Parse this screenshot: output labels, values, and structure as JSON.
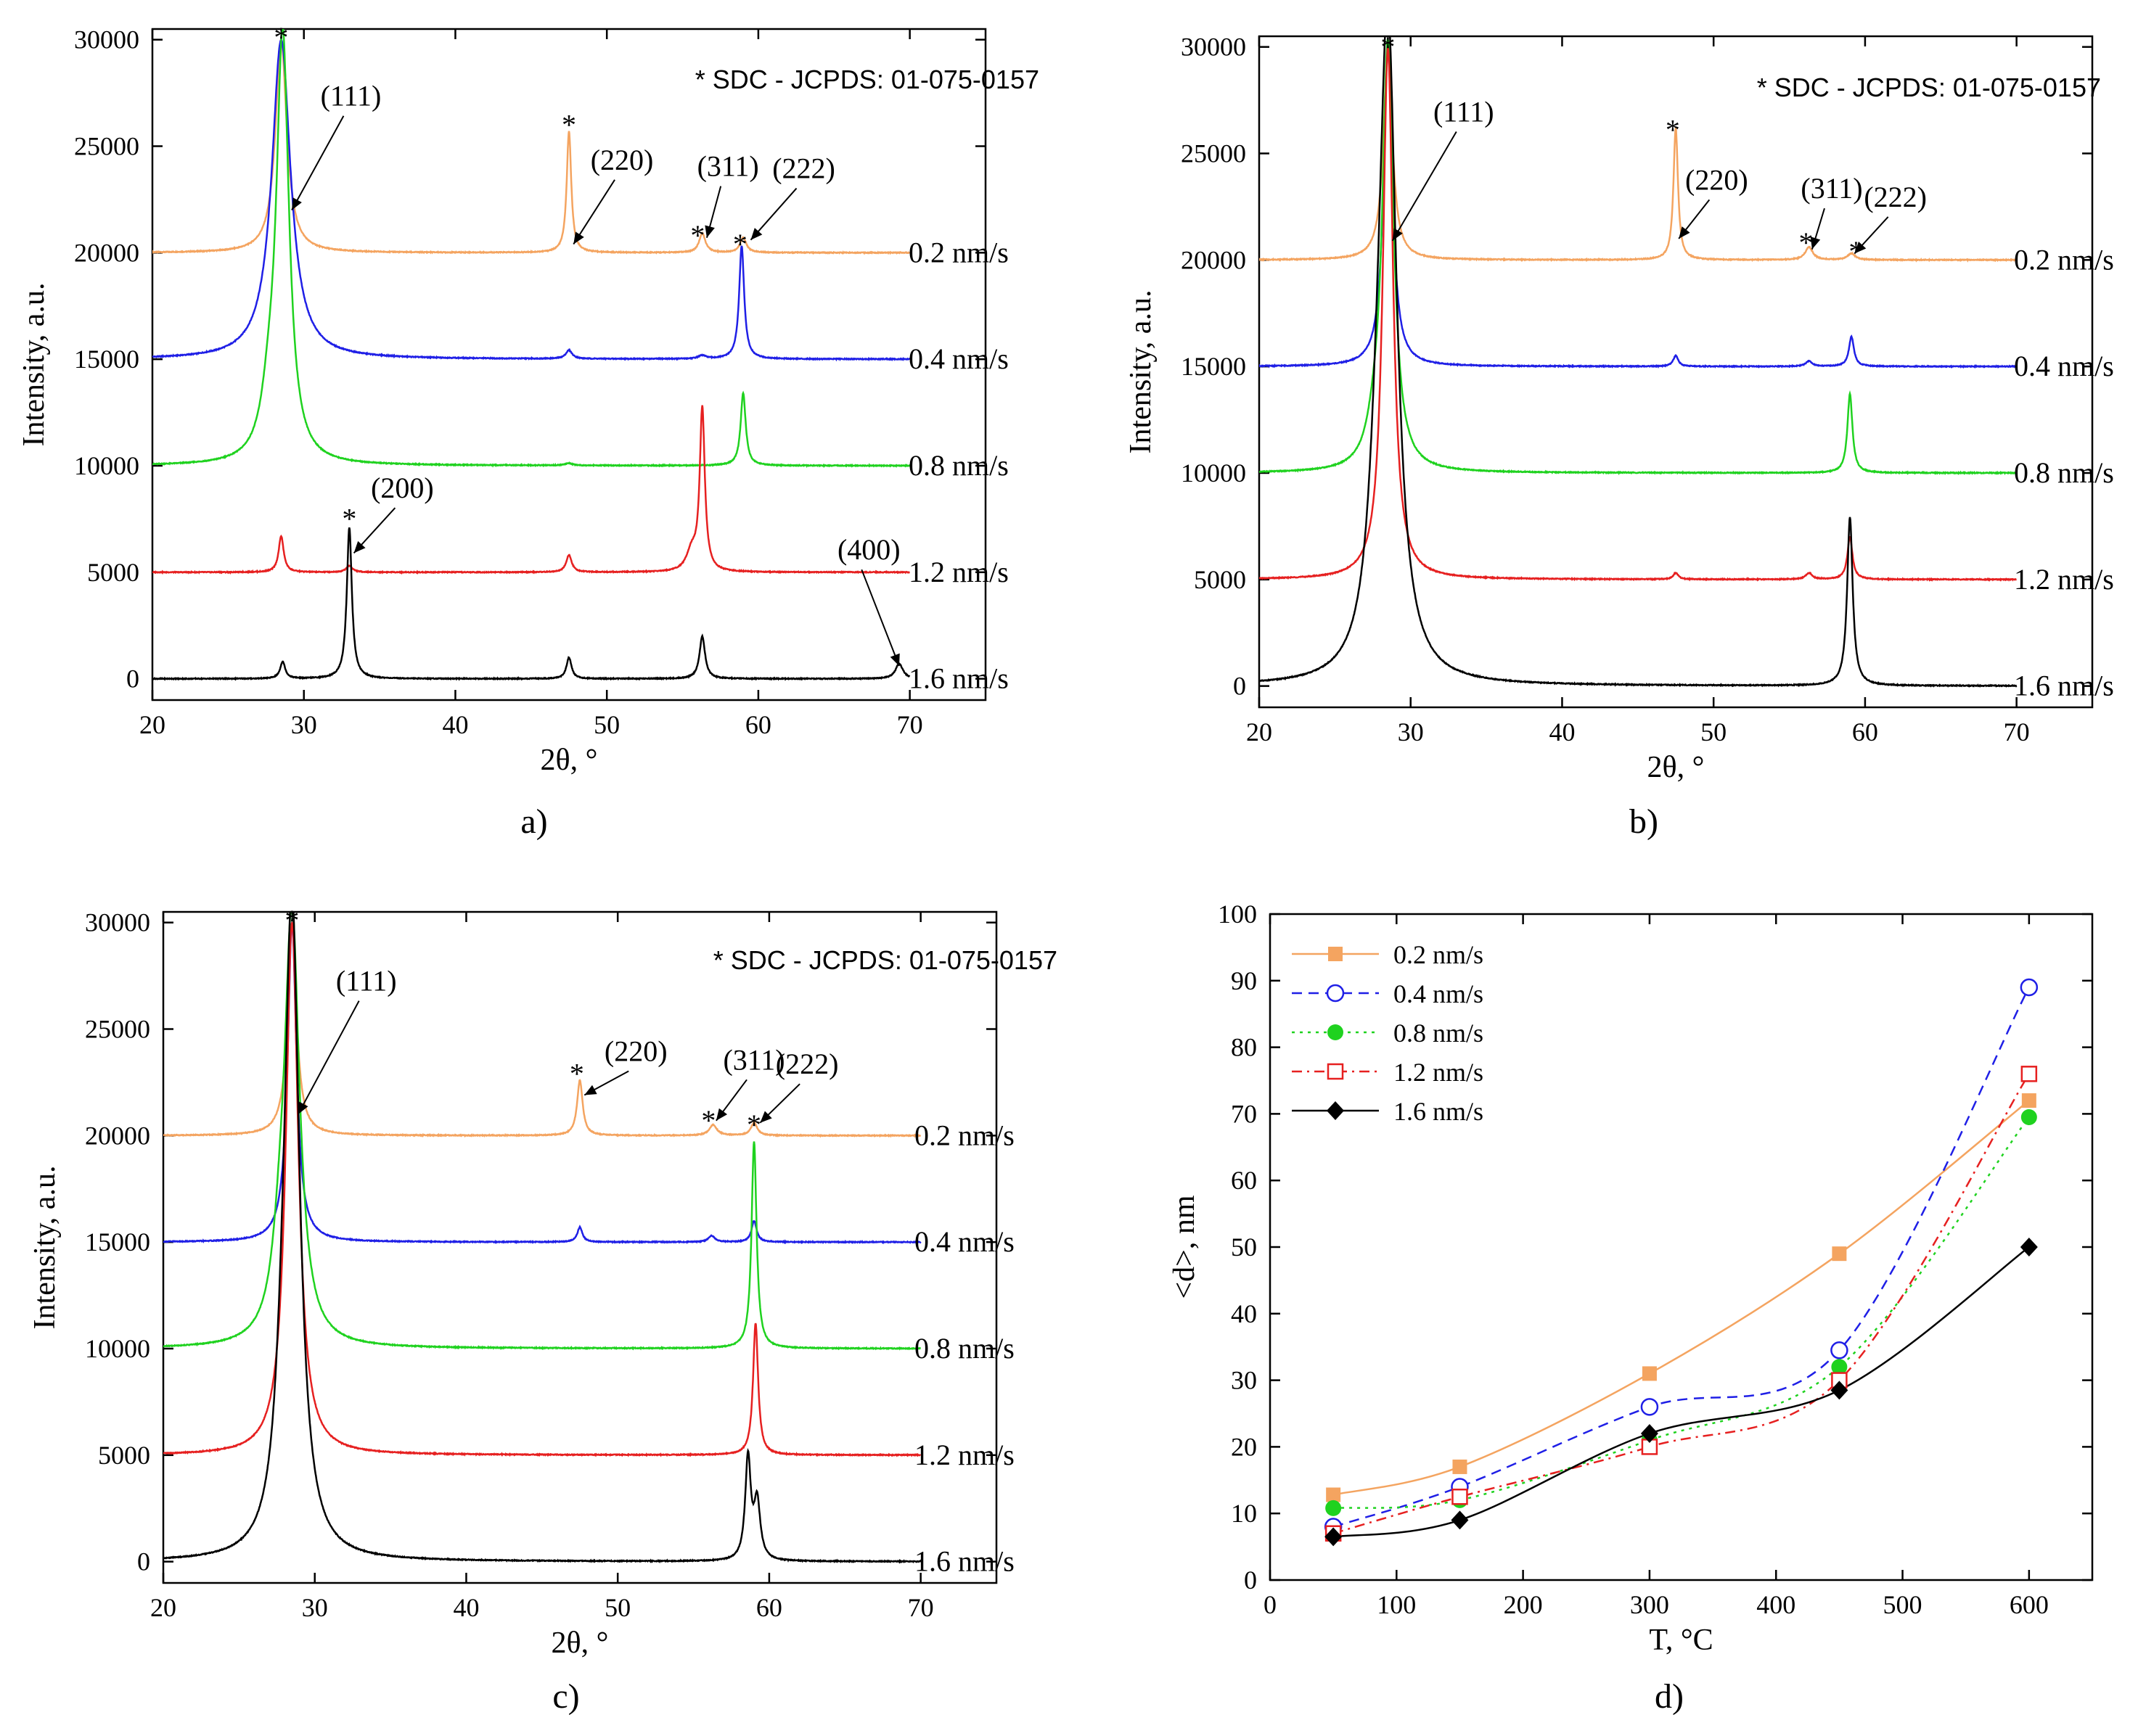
{
  "figure": {
    "panel_captions": [
      "a)",
      "b)",
      "c)",
      "d)"
    ],
    "reference_note": "* SDC - JCPDS: 01-075-0157"
  },
  "colors": {
    "0.2 nm/s": "#f4a460",
    "0.4 nm/s": "#1f1fe6",
    "0.8 nm/s": "#1fd21f",
    "1.2 nm/s": "#e62020",
    "1.6 nm/s": "#000000"
  },
  "chart_data": [
    {
      "panel": "a)",
      "type": "line",
      "title": "",
      "xlabel": "2θ, °",
      "ylabel": "Intensity, a.u.",
      "xlim": [
        20,
        75
      ],
      "ylim": [
        -1000,
        30500
      ],
      "xticks": [
        20,
        30,
        40,
        50,
        60,
        70
      ],
      "yticks": [
        0,
        5000,
        10000,
        15000,
        20000,
        25000,
        30000
      ],
      "annotation": "* SDC - JCPDS: 01-075-0157",
      "series": [
        {
          "name": "0.2 nm/s",
          "offset": 20000,
          "label": "0.2 nm/s",
          "peaks": [
            [
              28.5,
              10000,
              0.45
            ],
            [
              47.5,
              5700,
              0.18
            ],
            [
              56.3,
              900,
              0.25
            ],
            [
              59.0,
              700,
              0.25
            ]
          ]
        },
        {
          "name": "0.4 nm/s",
          "offset": 15000,
          "label": "0.4 nm/s",
          "peaks": [
            [
              28.5,
              15000,
              0.75
            ],
            [
              47.5,
              400,
              0.25
            ],
            [
              56.3,
              150,
              0.3
            ],
            [
              58.9,
              5300,
              0.2
            ]
          ]
        },
        {
          "name": "0.8 nm/s",
          "offset": 10000,
          "label": "0.8 nm/s",
          "peaks": [
            [
              28.6,
              20000,
              0.5
            ],
            [
              27.7,
              2000,
              0.6
            ],
            [
              47.5,
              100,
              0.3
            ],
            [
              59.0,
              3400,
              0.2
            ]
          ]
        },
        {
          "name": "1.2 nm/s",
          "offset": 5000,
          "label": "1.2 nm/s",
          "peaks": [
            [
              28.5,
              1700,
              0.2
            ],
            [
              33.0,
              300,
              0.25
            ],
            [
              47.5,
              800,
              0.22
            ],
            [
              56.3,
              7600,
              0.2
            ],
            [
              55.6,
              900,
              0.4
            ]
          ]
        },
        {
          "name": "1.6 nm/s",
          "offset": 0,
          "label": "1.6 nm/s",
          "peaks": [
            [
              28.6,
              800,
              0.2
            ],
            [
              33.0,
              7100,
              0.2
            ],
            [
              47.5,
              1000,
              0.2
            ],
            [
              56.3,
              2000,
              0.22
            ],
            [
              69.3,
              700,
              0.3
            ]
          ]
        }
      ],
      "annotations": [
        {
          "text": "(111)",
          "x": 29.2,
          "y": 22000,
          "tx": 33.1,
          "ty": 26900
        },
        {
          "text": "(220)",
          "x": 47.8,
          "y": 20400,
          "tx": 51.0,
          "ty": 23900
        },
        {
          "text": "(311)",
          "x": 56.6,
          "y": 20700,
          "tx": 58.0,
          "ty": 23600
        },
        {
          "text": "(222)",
          "x": 59.5,
          "y": 20600,
          "tx": 63.0,
          "ty": 23500
        },
        {
          "text": "(200)",
          "x": 33.3,
          "y": 5900,
          "tx": 36.5,
          "ty": 8500
        },
        {
          "text": "(400)",
          "x": 69.3,
          "y": 600,
          "tx": 67.3,
          "ty": 5600
        }
      ],
      "stars": [
        [
          28.5,
          30400
        ],
        [
          47.5,
          26300
        ],
        [
          56.0,
          21100
        ],
        [
          58.8,
          20700
        ],
        [
          33.0,
          7800
        ]
      ]
    },
    {
      "panel": "b)",
      "type": "line",
      "title": "",
      "xlabel": "2θ, °",
      "ylabel": "Intensity, a.u.",
      "xlim": [
        20,
        75
      ],
      "ylim": [
        -1000,
        30500
      ],
      "xticks": [
        20,
        30,
        40,
        50,
        60,
        70
      ],
      "yticks": [
        0,
        5000,
        10000,
        15000,
        20000,
        25000,
        30000
      ],
      "annotation": "* SDC - JCPDS: 01-075-0157",
      "series": [
        {
          "name": "0.2 nm/s",
          "offset": 20000,
          "label": "0.2 nm/s",
          "peaks": [
            [
              28.5,
              10000,
              0.35
            ],
            [
              47.5,
              6200,
              0.18
            ],
            [
              56.3,
              600,
              0.3
            ],
            [
              59.1,
              300,
              0.3
            ]
          ]
        },
        {
          "name": "0.4 nm/s",
          "offset": 15000,
          "label": "0.4 nm/s",
          "peaks": [
            [
              28.5,
              15000,
              0.35
            ],
            [
              47.5,
              500,
              0.2
            ],
            [
              56.3,
              250,
              0.25
            ],
            [
              59.1,
              1400,
              0.2
            ]
          ]
        },
        {
          "name": "0.8 nm/s",
          "offset": 10000,
          "label": "0.8 nm/s",
          "peaks": [
            [
              28.5,
              20000,
              0.45
            ],
            [
              27.6,
              1200,
              0.6
            ],
            [
              59.0,
              3700,
              0.2
            ]
          ]
        },
        {
          "name": "1.2 nm/s",
          "offset": 5000,
          "label": "1.2 nm/s",
          "peaks": [
            [
              28.5,
              25000,
              0.4
            ],
            [
              47.5,
              300,
              0.2
            ],
            [
              56.3,
              300,
              0.25
            ],
            [
              59.0,
              2000,
              0.2
            ]
          ]
        },
        {
          "name": "1.6 nm/s",
          "offset": 0,
          "label": "1.6 nm/s",
          "peaks": [
            [
              28.5,
              30000,
              0.7
            ],
            [
              27.8,
              4000,
              0.7
            ],
            [
              59.0,
              7900,
              0.22
            ]
          ]
        }
      ],
      "annotations": [
        {
          "text": "(111)",
          "x": 28.8,
          "y": 20900,
          "tx": 33.5,
          "ty": 26500
        },
        {
          "text": "(220)",
          "x": 47.7,
          "y": 21000,
          "tx": 50.2,
          "ty": 23300
        },
        {
          "text": "(311)",
          "x": 56.5,
          "y": 20500,
          "tx": 57.8,
          "ty": 22900
        },
        {
          "text": "(222)",
          "x": 59.3,
          "y": 20300,
          "tx": 62.0,
          "ty": 22500
        }
      ],
      "stars": [
        [
          28.5,
          30300
        ],
        [
          47.3,
          26400
        ],
        [
          56.1,
          21100
        ],
        [
          59.4,
          20700
        ]
      ]
    },
    {
      "panel": "c)",
      "type": "line",
      "title": "",
      "xlabel": "2θ, °",
      "ylabel": "Intensity, a.u.",
      "xlim": [
        20,
        75
      ],
      "ylim": [
        -1000,
        30500
      ],
      "xticks": [
        20,
        30,
        40,
        50,
        60,
        70
      ],
      "yticks": [
        0,
        5000,
        10000,
        15000,
        20000,
        25000,
        30000
      ],
      "annotation": "* SDC - JCPDS: 01-075-0157",
      "series": [
        {
          "name": "0.2 nm/s",
          "offset": 20000,
          "label": "0.2 nm/s",
          "peaks": [
            [
              28.5,
              10000,
              0.35
            ],
            [
              47.5,
              2600,
              0.22
            ],
            [
              56.3,
              500,
              0.3
            ],
            [
              59.0,
              600,
              0.25
            ]
          ]
        },
        {
          "name": "0.4 nm/s",
          "offset": 15000,
          "label": "0.4 nm/s",
          "peaks": [
            [
              28.5,
              15000,
              0.35
            ],
            [
              47.5,
              700,
              0.2
            ],
            [
              56.2,
              300,
              0.25
            ],
            [
              59.0,
              1000,
              0.2
            ]
          ]
        },
        {
          "name": "0.8 nm/s",
          "offset": 10000,
          "label": "0.8 nm/s",
          "peaks": [
            [
              28.5,
              20000,
              0.6
            ],
            [
              27.7,
              2500,
              0.6
            ],
            [
              59.0,
              9700,
              0.2
            ]
          ]
        },
        {
          "name": "1.2 nm/s",
          "offset": 5000,
          "label": "1.2 nm/s",
          "peaks": [
            [
              28.5,
              25000,
              0.5
            ],
            [
              59.1,
              6200,
              0.2
            ]
          ]
        },
        {
          "name": "1.6 nm/s",
          "offset": 0,
          "label": "1.6 nm/s",
          "peaks": [
            [
              28.5,
              30000,
              0.6
            ],
            [
              27.9,
              3000,
              0.6
            ],
            [
              58.6,
              4800,
              0.22
            ],
            [
              59.2,
              2700,
              0.25
            ]
          ]
        }
      ],
      "annotations": [
        {
          "text": "(111)",
          "x": 28.9,
          "y": 21000,
          "tx": 33.4,
          "ty": 26800
        },
        {
          "text": "(220)",
          "x": 47.8,
          "y": 21900,
          "tx": 51.2,
          "ty": 23500
        },
        {
          "text": "(311)",
          "x": 56.5,
          "y": 20700,
          "tx": 59.0,
          "ty": 23100
        },
        {
          "text": "(222)",
          "x": 59.4,
          "y": 20600,
          "tx": 62.5,
          "ty": 22900
        }
      ],
      "stars": [
        [
          28.5,
          30400
        ],
        [
          47.3,
          23200
        ],
        [
          56.0,
          21000
        ],
        [
          59.0,
          20800
        ]
      ]
    },
    {
      "panel": "d)",
      "type": "line",
      "title": "",
      "xlabel": "T, °C",
      "ylabel": "<d>, nm",
      "xlim": [
        0,
        650
      ],
      "ylim": [
        0,
        100
      ],
      "xticks": [
        0,
        100,
        200,
        300,
        400,
        500,
        600
      ],
      "yticks": [
        0,
        10,
        20,
        30,
        40,
        50,
        60,
        70,
        80,
        90,
        100
      ],
      "legend_position": "top-left",
      "x": [
        50,
        150,
        300,
        450,
        600
      ],
      "series": [
        {
          "name": "0.2 nm/s",
          "values": [
            12.8,
            17,
            31,
            49,
            72
          ],
          "marker": "square-filled",
          "dash": "solid"
        },
        {
          "name": "0.4 nm/s",
          "values": [
            8,
            14,
            26,
            34.5,
            89
          ],
          "marker": "circle-open",
          "dash": "dashed"
        },
        {
          "name": "0.8 nm/s",
          "values": [
            10.8,
            12,
            21,
            32,
            69.5
          ],
          "marker": "circle-filled",
          "dash": "dotted"
        },
        {
          "name": "1.2 nm/s",
          "values": [
            7,
            12.5,
            20,
            30,
            76
          ],
          "marker": "square-open",
          "dash": "dashdot"
        },
        {
          "name": "1.6 nm/s",
          "values": [
            6.5,
            9,
            22,
            28.5,
            50
          ],
          "marker": "diamond-filled",
          "dash": "solid"
        }
      ]
    }
  ]
}
